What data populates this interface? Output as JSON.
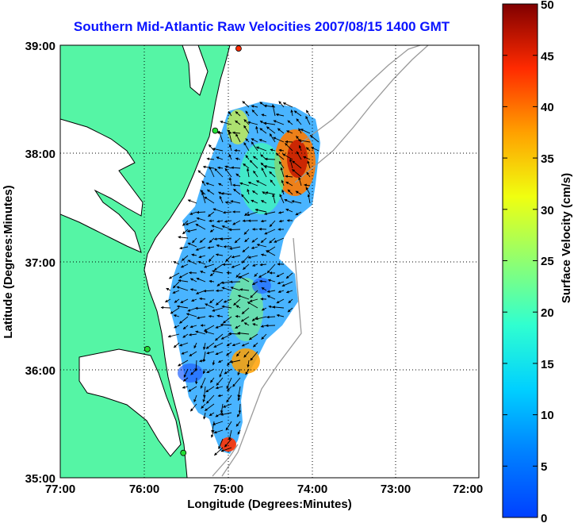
{
  "title": "Southern Mid-Atlantic Raw Velocities 2007/08/15 1400 GMT",
  "map": {
    "xlabel": "Longitude (Degrees:Minutes)",
    "ylabel": "Latitude (Degrees:Minutes)",
    "x_ticks": [
      "77:00",
      "76:00",
      "75:00",
      "74:00",
      "73:00",
      "72:00"
    ],
    "y_ticks": [
      "39:00",
      "38:00",
      "37:00",
      "36:00",
      "35:00"
    ],
    "lon_range": [
      -77,
      -72
    ],
    "lat_range": [
      35,
      39
    ],
    "grid": "dotted"
  },
  "colorbar": {
    "label": "Surface Velocity (cm/s)",
    "ticks": [
      "50",
      "45",
      "40",
      "35",
      "30",
      "25",
      "20",
      "15",
      "10",
      "5",
      "0"
    ],
    "range": [
      0,
      50
    ],
    "colormap": "jet"
  },
  "colors": {
    "land": "#55f5a5",
    "water": "#ffffff",
    "title": "#0a14ff",
    "bathymetry": "#9a9a9a"
  },
  "stations": [
    {
      "lon": -74.87,
      "lat": 38.97,
      "color": "#ff2a00"
    },
    {
      "lon": -75.15,
      "lat": 38.21,
      "color": "#22dd33"
    },
    {
      "lon": -75.96,
      "lat": 36.19,
      "color": "#22dd33"
    },
    {
      "lon": -75.53,
      "lat": 35.23,
      "color": "#22dd33"
    }
  ]
}
